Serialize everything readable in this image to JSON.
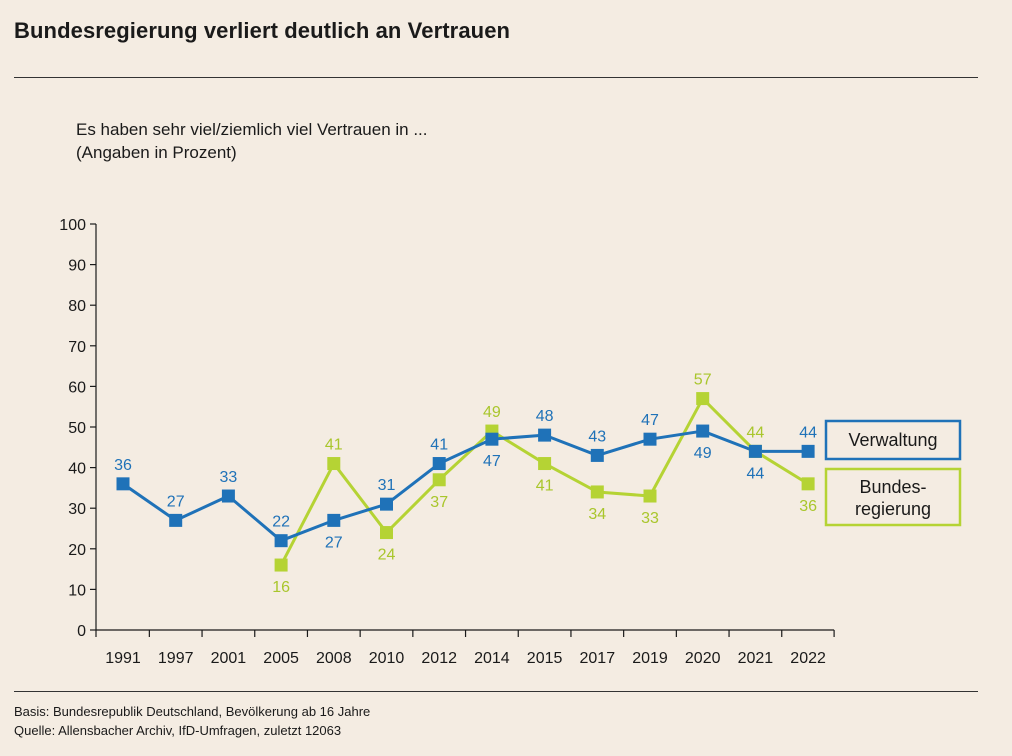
{
  "header": {
    "title": "Bundesregierung verliert deutlich an Vertrauen",
    "subtitle_line1": "Es haben sehr viel/ziemlich viel Vertrauen in ...",
    "subtitle_line2": "(Angaben in Prozent)"
  },
  "footer": {
    "basis": "Basis: Bundesrepublik Deutschland, Bevölkerung ab 16 Jahre",
    "quelle": "Quelle: Allensbacher Archiv, IfD-Umfragen, zuletzt 12063"
  },
  "colors": {
    "verwaltung": "#1f72b8",
    "bundesregierung": "#b5d334",
    "background": "#f4ece2"
  },
  "chart_data": {
    "type": "line",
    "categories": [
      "1991",
      "1997",
      "2001",
      "2005",
      "2008",
      "2010",
      "2012",
      "2014",
      "2015",
      "2017",
      "2019",
      "2020",
      "2021",
      "2022"
    ],
    "ylim": [
      0,
      100
    ],
    "yticks": [
      0,
      10,
      20,
      30,
      40,
      50,
      60,
      70,
      80,
      90,
      100
    ],
    "grid": false,
    "legend_position": "right",
    "series": [
      {
        "name": "Verwaltung",
        "values": [
          36,
          27,
          33,
          22,
          27,
          31,
          41,
          47,
          48,
          43,
          47,
          49,
          44,
          44
        ]
      },
      {
        "name": "Bundes-regierung",
        "legend_lines": [
          "Bundes-",
          "regierung"
        ],
        "values": [
          null,
          null,
          null,
          16,
          41,
          24,
          37,
          49,
          41,
          34,
          33,
          57,
          44,
          36
        ]
      }
    ]
  }
}
